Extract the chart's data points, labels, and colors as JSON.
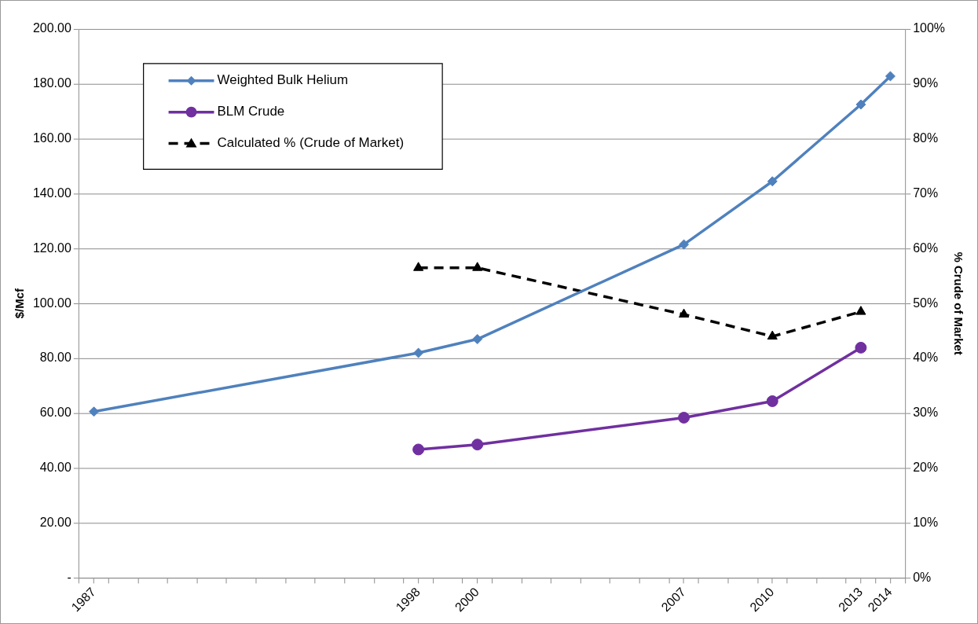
{
  "chart_data": {
    "type": "line",
    "ylabel": "$/Mcf",
    "y2label": "% Crude of Market",
    "x": [
      1987,
      1998,
      2000,
      2007,
      2010,
      2013,
      2014
    ],
    "xlim": [
      1986.5,
      2014.5
    ],
    "xticks": [
      {
        "value": 1986.5,
        "label": null
      },
      1987,
      {
        "value": 1987.5,
        "label": null
      },
      {
        "value": 1988.5,
        "label": null
      },
      {
        "value": 1989.5,
        "label": null
      },
      {
        "value": 1990.5,
        "label": null
      },
      {
        "value": 1991.5,
        "label": null
      },
      {
        "value": 1992.5,
        "label": null
      },
      {
        "value": 1993.5,
        "label": null
      },
      {
        "value": 1994.5,
        "label": null
      },
      {
        "value": 1995.5,
        "label": null
      },
      {
        "value": 1996.5,
        "label": null
      },
      {
        "value": 1997.5,
        "label": null
      },
      1998,
      {
        "value": 1998.5,
        "label": null
      },
      {
        "value": 1999.5,
        "label": null
      },
      2000,
      {
        "value": 2000.5,
        "label": null
      },
      {
        "value": 2001.5,
        "label": null
      },
      {
        "value": 2002.5,
        "label": null
      },
      {
        "value": 2003.5,
        "label": null
      },
      {
        "value": 2004.5,
        "label": null
      },
      {
        "value": 2005.5,
        "label": null
      },
      {
        "value": 2006.5,
        "label": null
      },
      2007,
      {
        "value": 2007.5,
        "label": null
      },
      {
        "value": 2008.5,
        "label": null
      },
      {
        "value": 2009.5,
        "label": null
      },
      2010,
      {
        "value": 2010.5,
        "label": null
      },
      {
        "value": 2011.5,
        "label": null
      },
      {
        "value": 2012.5,
        "label": null
      },
      2013,
      {
        "value": 2013.5,
        "label": null
      },
      2014,
      {
        "value": 2014.5,
        "label": null
      }
    ],
    "ylim": [
      0,
      200
    ],
    "yticks": [
      {
        "value": 0,
        "label": "-"
      },
      {
        "value": 20,
        "label": "20.00"
      },
      {
        "value": 40,
        "label": "40.00"
      },
      {
        "value": 60,
        "label": "60.00"
      },
      {
        "value": 80,
        "label": "80.00"
      },
      {
        "value": 100,
        "label": "100.00"
      },
      {
        "value": 120,
        "label": "120.00"
      },
      {
        "value": 140,
        "label": "140.00"
      },
      {
        "value": 160,
        "label": "160.00"
      },
      {
        "value": 180,
        "label": "180.00"
      },
      {
        "value": 200,
        "label": "200.00"
      }
    ],
    "y2lim": [
      0,
      100
    ],
    "y2ticks": [
      {
        "value": 0,
        "label": "0%"
      },
      {
        "value": 10,
        "label": "10%"
      },
      {
        "value": 20,
        "label": "20%"
      },
      {
        "value": 30,
        "label": "30%"
      },
      {
        "value": 40,
        "label": "40%"
      },
      {
        "value": 50,
        "label": "50%"
      },
      {
        "value": 60,
        "label": "60%"
      },
      {
        "value": 70,
        "label": "70%"
      },
      {
        "value": 80,
        "label": "80%"
      },
      {
        "value": 90,
        "label": "90%"
      },
      {
        "value": 100,
        "label": "100%"
      }
    ],
    "grid": "y",
    "legend": "top left",
    "series": [
      {
        "name": "Weighted Bulk Helium",
        "color": "#4f81bd",
        "marker": "diamond",
        "values": [
          60.6,
          82,
          87,
          121.5,
          144.5,
          172.5,
          182.8
        ]
      },
      {
        "name": "BLM Crude",
        "color": "#7030a0",
        "marker": "circle",
        "x": [
          1998,
          2000,
          2007,
          2010,
          2013
        ],
        "values": [
          46.8,
          48.6,
          58.4,
          64.4,
          83.9
        ]
      },
      {
        "name": "Calculated % (Crude of Market)",
        "color": "#000000",
        "marker": "triangle",
        "line_style": "dashed",
        "axis": "y2",
        "x": [
          1998,
          2000,
          2007,
          2010,
          2013
        ],
        "values": [
          56.5,
          56.5,
          48,
          44,
          48.5
        ]
      }
    ]
  }
}
